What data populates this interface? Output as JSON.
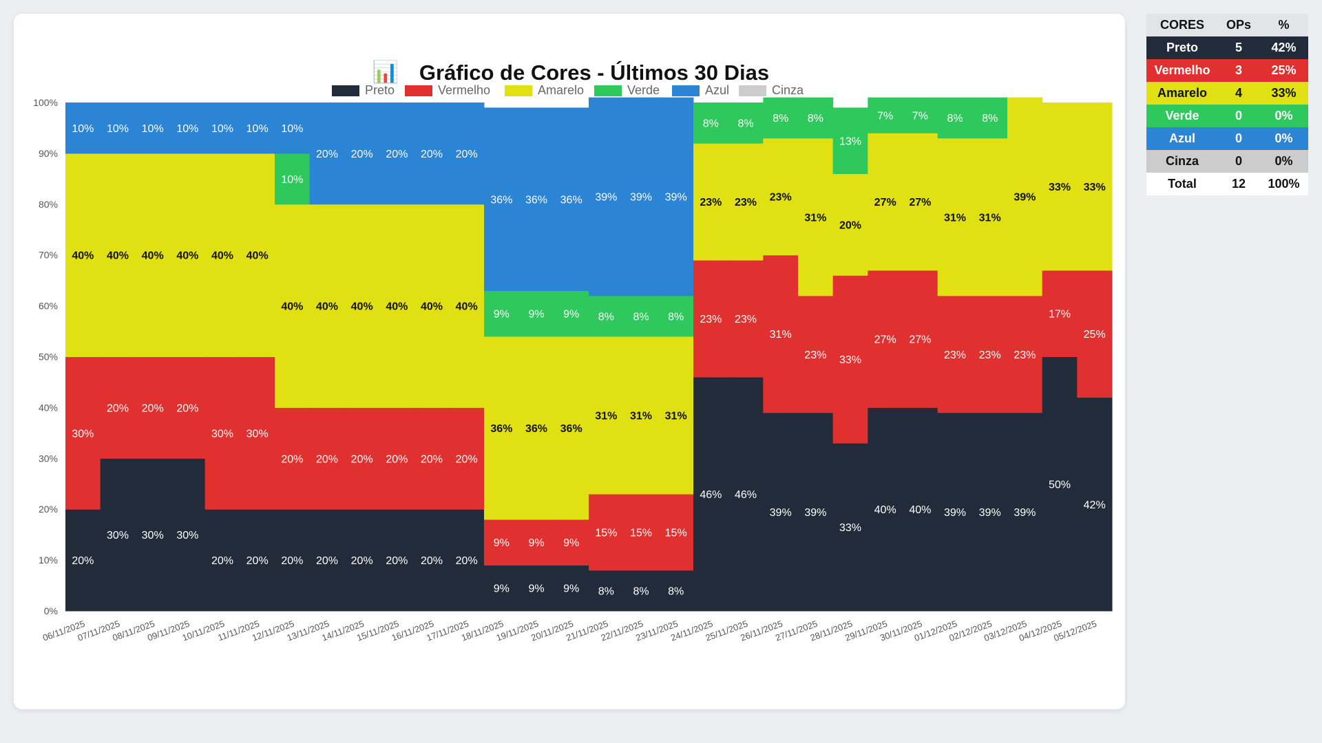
{
  "chart_data": {
    "type": "bar",
    "stacked": "percent",
    "title": "Gráfico de Cores - Últimos 30 Dias",
    "title_icon": "bar-chart-emoji",
    "xlabel": "",
    "ylabel": "",
    "ylim": [
      0,
      100
    ],
    "y_ticks": [
      "0%",
      "10%",
      "20%",
      "30%",
      "40%",
      "50%",
      "60%",
      "70%",
      "80%",
      "90%",
      "100%"
    ],
    "legend_position": "top",
    "categories": [
      "06/11/2025",
      "07/11/2025",
      "08/11/2025",
      "09/11/2025",
      "10/11/2025",
      "11/11/2025",
      "12/11/2025",
      "13/11/2025",
      "14/11/2025",
      "15/11/2025",
      "16/11/2025",
      "17/11/2025",
      "18/11/2025",
      "19/11/2025",
      "20/11/2025",
      "21/11/2025",
      "22/11/2025",
      "23/11/2025",
      "24/11/2025",
      "25/11/2025",
      "26/11/2025",
      "27/11/2025",
      "28/11/2025",
      "29/11/2025",
      "30/11/2025",
      "01/12/2025",
      "02/12/2025",
      "03/12/2025",
      "04/12/2025",
      "05/12/2025"
    ],
    "series": [
      {
        "name": "Preto",
        "color": "#222b3a",
        "label_color": "#ffffff",
        "values": [
          20,
          30,
          30,
          30,
          20,
          20,
          20,
          20,
          20,
          20,
          20,
          20,
          9,
          9,
          9,
          8,
          8,
          8,
          46,
          46,
          39,
          39,
          33,
          40,
          40,
          39,
          39,
          39,
          50,
          42
        ]
      },
      {
        "name": "Vermelho",
        "color": "#e03030",
        "label_color": "#ffffff",
        "values": [
          30,
          20,
          20,
          20,
          30,
          30,
          20,
          20,
          20,
          20,
          20,
          20,
          9,
          9,
          9,
          15,
          15,
          15,
          23,
          23,
          31,
          23,
          33,
          27,
          27,
          23,
          23,
          23,
          17,
          25
        ]
      },
      {
        "name": "Amarelo",
        "color": "#e1e012",
        "label_color": "#111111",
        "values": [
          40,
          40,
          40,
          40,
          40,
          40,
          40,
          40,
          40,
          40,
          40,
          40,
          36,
          36,
          36,
          31,
          31,
          31,
          23,
          23,
          23,
          31,
          20,
          27,
          27,
          31,
          31,
          39,
          33,
          33
        ]
      },
      {
        "name": "Verde",
        "color": "#2fc85c",
        "label_color": "#ffffff",
        "values": [
          0,
          0,
          0,
          0,
          0,
          0,
          10,
          0,
          0,
          0,
          0,
          0,
          9,
          9,
          9,
          8,
          8,
          8,
          8,
          8,
          8,
          8,
          13,
          7,
          7,
          8,
          8,
          0,
          0,
          0
        ]
      },
      {
        "name": "Azul",
        "color": "#2b84d4",
        "label_color": "#ffffff",
        "values": [
          10,
          10,
          10,
          10,
          10,
          10,
          10,
          20,
          20,
          20,
          20,
          20,
          36,
          36,
          36,
          39,
          39,
          39,
          0,
          0,
          0,
          0,
          0,
          0,
          0,
          0,
          0,
          0,
          0,
          0
        ]
      },
      {
        "name": "Cinza",
        "color": "#cccccc",
        "label_color": "#111111",
        "values": [
          0,
          0,
          0,
          0,
          0,
          0,
          0,
          0,
          0,
          0,
          0,
          0,
          0,
          0,
          0,
          0,
          0,
          0,
          0,
          0,
          0,
          0,
          0,
          0,
          0,
          0,
          0,
          0,
          0,
          0
        ]
      }
    ]
  },
  "summary": {
    "headers": [
      "CORES",
      "OPs",
      "%"
    ],
    "rows": [
      {
        "color": "Preto",
        "ops": "5",
        "pct": "42%",
        "bg": "#222b3a"
      },
      {
        "color": "Vermelho",
        "ops": "3",
        "pct": "25%",
        "bg": "#e03030"
      },
      {
        "color": "Amarelo",
        "ops": "4",
        "pct": "33%",
        "bg": "#e1e012"
      },
      {
        "color": "Verde",
        "ops": "0",
        "pct": "0%",
        "bg": "#2fc85c"
      },
      {
        "color": "Azul",
        "ops": "0",
        "pct": "0%",
        "bg": "#2b84d4"
      },
      {
        "color": "Cinza",
        "ops": "0",
        "pct": "0%",
        "bg": "#cccccc"
      }
    ],
    "total": {
      "label": "Total",
      "ops": "12",
      "pct": "100%"
    }
  }
}
